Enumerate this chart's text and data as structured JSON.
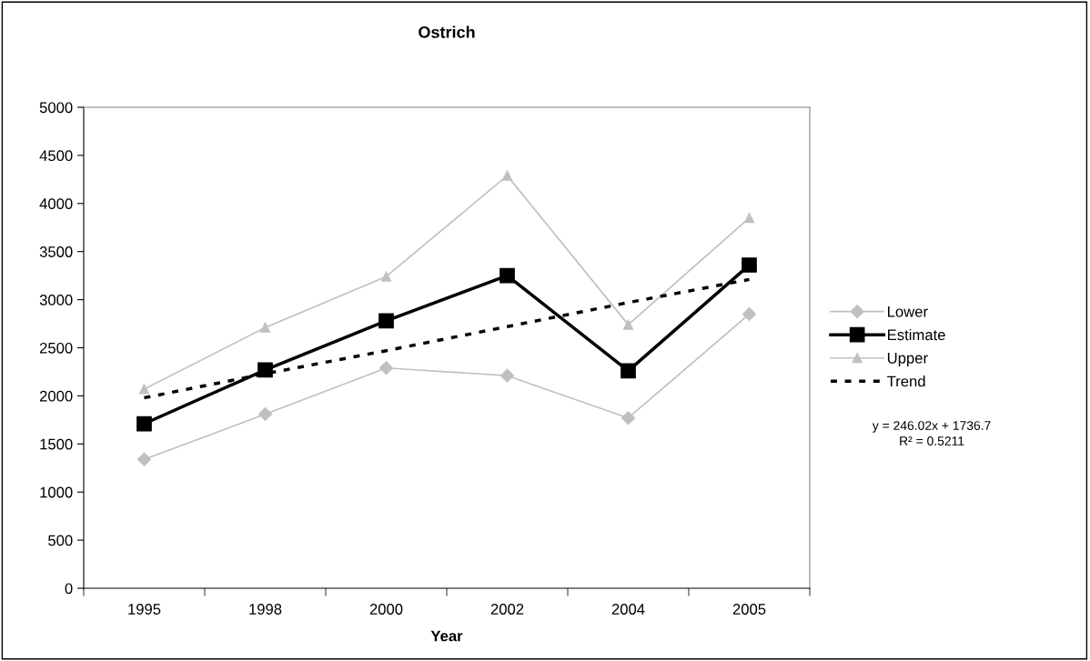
{
  "chart_data": {
    "type": "line",
    "title": "Ostrich",
    "xlabel": "Year",
    "categories": [
      "1995",
      "1998",
      "2000",
      "2002",
      "2004",
      "2005"
    ],
    "series": [
      {
        "name": "Lower",
        "color": "#c0c0c0",
        "marker": "diamond",
        "line_style": "solid",
        "values": [
          1340,
          1810,
          2290,
          2210,
          1770,
          2850
        ]
      },
      {
        "name": "Estimate",
        "color": "#000000",
        "marker": "square",
        "line_style": "solid",
        "values": [
          1710,
          2270,
          2780,
          3250,
          2260,
          3360
        ]
      },
      {
        "name": "Upper",
        "color": "#c0c0c0",
        "marker": "triangle",
        "line_style": "solid",
        "values": [
          2070,
          2710,
          3240,
          4290,
          2740,
          3850
        ]
      },
      {
        "name": "Trend",
        "color": "#000000",
        "marker": "none",
        "line_style": "dotted",
        "values": [
          1980,
          2230,
          2470,
          2720,
          2970,
          3210
        ]
      }
    ],
    "ylim": [
      0,
      5000
    ],
    "yticks": [
      0,
      500,
      1000,
      1500,
      2000,
      2500,
      3000,
      3500,
      4000,
      4500,
      5000
    ],
    "grid": false,
    "legend": "right",
    "annotations": [
      "y = 246.02x + 1736.7\nR² = 0.5211"
    ]
  }
}
